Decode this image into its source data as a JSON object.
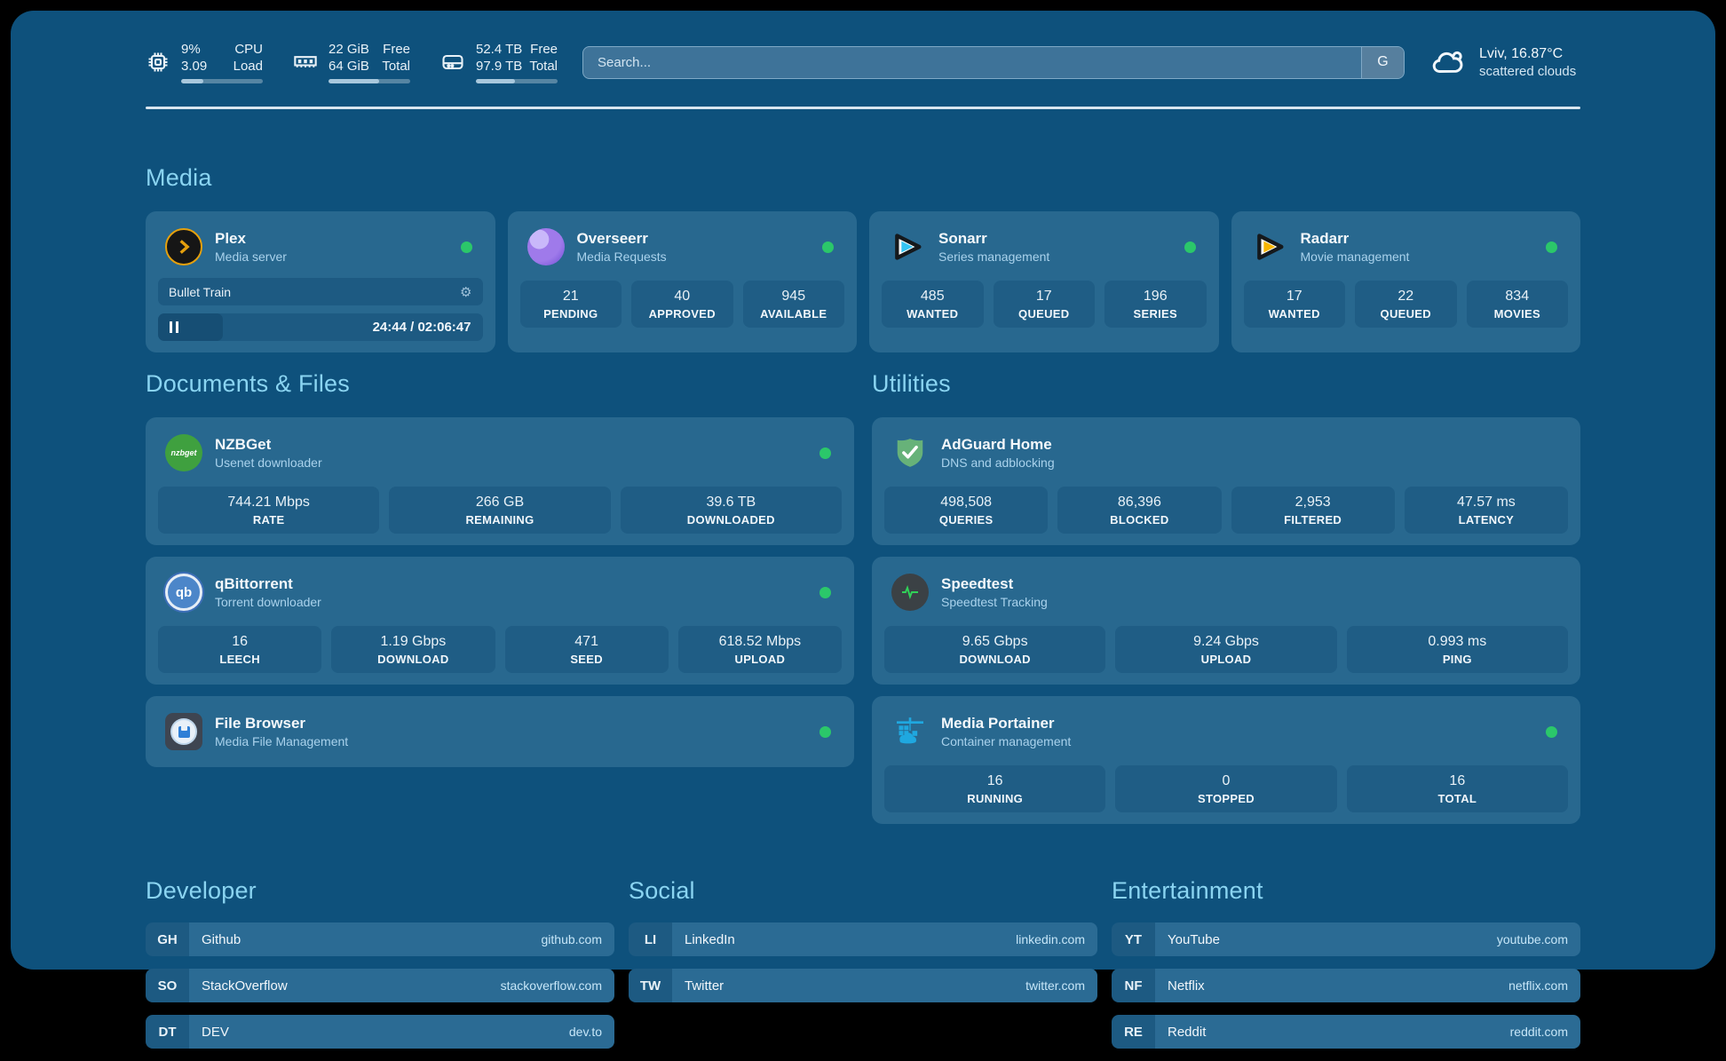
{
  "topbar": {
    "stats": [
      {
        "icon": "cpu-icon",
        "values": [
          "9%",
          "3.09"
        ],
        "labels": [
          "CPU",
          "Load"
        ],
        "progress_pct": 27
      },
      {
        "icon": "ram-icon",
        "values": [
          "22 GiB",
          "64 GiB"
        ],
        "labels": [
          "Free",
          "Total"
        ],
        "progress_pct": 62
      },
      {
        "icon": "disk-icon",
        "values": [
          "52.4 TB",
          "97.9 TB"
        ],
        "labels": [
          "Free",
          "Total"
        ],
        "progress_pct": 48
      }
    ],
    "search": {
      "placeholder": "Search...",
      "engine_label": "G"
    },
    "weather": {
      "location": "Lviv, 16.87°C",
      "condition": "scattered clouds"
    }
  },
  "sections": {
    "media": {
      "title": "Media",
      "apps": [
        {
          "name": "Plex",
          "subtitle": "Media server",
          "online": true,
          "player": {
            "title": "Bullet Train",
            "time": "24:44 / 02:06:47",
            "progress_pct": 20
          }
        },
        {
          "name": "Overseerr",
          "subtitle": "Media Requests",
          "online": true,
          "stats": [
            {
              "value": "21",
              "label": "PENDING"
            },
            {
              "value": "40",
              "label": "APPROVED"
            },
            {
              "value": "945",
              "label": "AVAILABLE"
            }
          ]
        },
        {
          "name": "Sonarr",
          "subtitle": "Series management",
          "online": true,
          "stats": [
            {
              "value": "485",
              "label": "WANTED"
            },
            {
              "value": "17",
              "label": "QUEUED"
            },
            {
              "value": "196",
              "label": "SERIES"
            }
          ]
        },
        {
          "name": "Radarr",
          "subtitle": "Movie management",
          "online": true,
          "stats": [
            {
              "value": "17",
              "label": "WANTED"
            },
            {
              "value": "22",
              "label": "QUEUED"
            },
            {
              "value": "834",
              "label": "MOVIES"
            }
          ]
        }
      ]
    },
    "documents": {
      "title": "Documents & Files",
      "apps": [
        {
          "name": "NZBGet",
          "subtitle": "Usenet downloader",
          "online": true,
          "stats": [
            {
              "value": "744.21 Mbps",
              "label": "RATE"
            },
            {
              "value": "266 GB",
              "label": "REMAINING"
            },
            {
              "value": "39.6 TB",
              "label": "DOWNLOADED"
            }
          ]
        },
        {
          "name": "qBittorrent",
          "subtitle": "Torrent downloader",
          "online": true,
          "stats": [
            {
              "value": "16",
              "label": "LEECH"
            },
            {
              "value": "1.19 Gbps",
              "label": "DOWNLOAD"
            },
            {
              "value": "471",
              "label": "SEED"
            },
            {
              "value": "618.52 Mbps",
              "label": "UPLOAD"
            }
          ]
        },
        {
          "name": "File Browser",
          "subtitle": "Media File Management",
          "online": true
        }
      ]
    },
    "utilities": {
      "title": "Utilities",
      "apps": [
        {
          "name": "AdGuard Home",
          "subtitle": "DNS and adblocking",
          "online": false,
          "stats": [
            {
              "value": "498,508",
              "label": "QUERIES"
            },
            {
              "value": "86,396",
              "label": "BLOCKED"
            },
            {
              "value": "2,953",
              "label": "FILTERED"
            },
            {
              "value": "47.57 ms",
              "label": "LATENCY"
            }
          ]
        },
        {
          "name": "Speedtest",
          "subtitle": "Speedtest Tracking",
          "online": false,
          "stats": [
            {
              "value": "9.65 Gbps",
              "label": "DOWNLOAD"
            },
            {
              "value": "9.24 Gbps",
              "label": "UPLOAD"
            },
            {
              "value": "0.993 ms",
              "label": "PING"
            }
          ]
        },
        {
          "name": "Media Portainer",
          "subtitle": "Container management",
          "online": true,
          "stats": [
            {
              "value": "16",
              "label": "RUNNING"
            },
            {
              "value": "0",
              "label": "STOPPED"
            },
            {
              "value": "16",
              "label": "TOTAL"
            }
          ]
        }
      ]
    },
    "bookmarks": [
      {
        "title": "Developer",
        "items": [
          {
            "abbr": "GH",
            "name": "Github",
            "url": "github.com"
          },
          {
            "abbr": "SO",
            "name": "StackOverflow",
            "url": "stackoverflow.com"
          },
          {
            "abbr": "DT",
            "name": "DEV",
            "url": "dev.to"
          }
        ]
      },
      {
        "title": "Social",
        "items": [
          {
            "abbr": "LI",
            "name": "LinkedIn",
            "url": "linkedin.com"
          },
          {
            "abbr": "TW",
            "name": "Twitter",
            "url": "twitter.com"
          }
        ]
      },
      {
        "title": "Entertainment",
        "items": [
          {
            "abbr": "YT",
            "name": "YouTube",
            "url": "youtube.com"
          },
          {
            "abbr": "NF",
            "name": "Netflix",
            "url": "netflix.com"
          },
          {
            "abbr": "RE",
            "name": "Reddit",
            "url": "reddit.com"
          }
        ]
      }
    ]
  },
  "colors": {
    "status_online": "#2BC76A",
    "section_header": "#8AD4F1",
    "background": "#0E517C",
    "card": "#28688F"
  }
}
